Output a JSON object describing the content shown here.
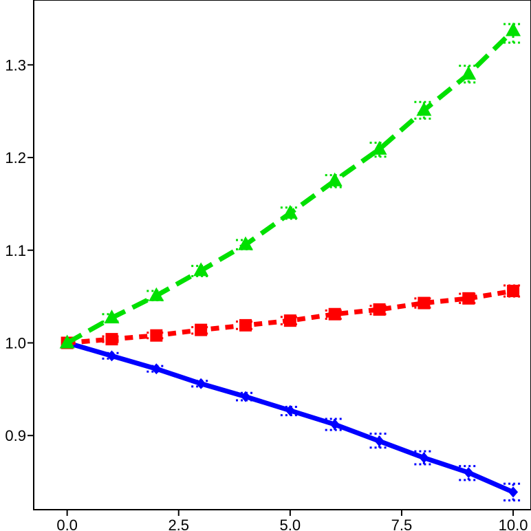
{
  "chart_data": {
    "type": "line",
    "title": "",
    "xlabel": "",
    "ylabel": "",
    "xlim": [
      -0.75,
      10.4
    ],
    "ylim": [
      0.82,
      1.37
    ],
    "x_ticks": [
      "0.0",
      "2.5",
      "5.0",
      "7.5",
      "10.0"
    ],
    "x_tick_values": [
      0,
      2.5,
      5,
      7.5,
      10
    ],
    "y_ticks": [
      "0.9",
      "1.0",
      "1.1",
      "1.2",
      "1.3"
    ],
    "y_tick_values": [
      0.9,
      1.0,
      1.1,
      1.2,
      1.3
    ],
    "grid": false,
    "legend": "none",
    "x": [
      0,
      1,
      2,
      3,
      4,
      5,
      6,
      7,
      8,
      9,
      10
    ],
    "series": [
      {
        "color": "#0000ff",
        "dash": "solid",
        "marker": "diamond",
        "values": [
          1.0,
          0.986,
          0.972,
          0.956,
          0.942,
          0.927,
          0.912,
          0.894,
          0.876,
          0.86,
          0.839
        ],
        "error_low": [
          1.0,
          0.983,
          0.969,
          0.953,
          0.938,
          0.922,
          0.906,
          0.887,
          0.869,
          0.852,
          0.83
        ],
        "error_high": [
          1.0,
          0.989,
          0.975,
          0.959,
          0.946,
          0.931,
          0.918,
          0.902,
          0.883,
          0.867,
          0.848
        ]
      },
      {
        "color": "#ff0000",
        "dash": "dashed",
        "marker": "square",
        "values": [
          1.0,
          1.004,
          1.008,
          1.014,
          1.019,
          1.024,
          1.031,
          1.036,
          1.043,
          1.048,
          1.056
        ],
        "error_low": [
          1.0,
          1.001,
          1.005,
          1.01,
          1.015,
          1.02,
          1.026,
          1.031,
          1.038,
          1.043,
          1.05
        ],
        "error_high": [
          1.0,
          1.007,
          1.011,
          1.017,
          1.023,
          1.028,
          1.035,
          1.04,
          1.048,
          1.053,
          1.062
        ]
      },
      {
        "color": "#00e000",
        "dash": "longdash",
        "marker": "triangle",
        "values": [
          1.0,
          1.027,
          1.051,
          1.078,
          1.106,
          1.14,
          1.175,
          1.209,
          1.251,
          1.29,
          1.337
        ],
        "error_low": [
          1.0,
          1.023,
          1.046,
          1.072,
          1.101,
          1.134,
          1.168,
          1.201,
          1.242,
          1.281,
          1.324
        ],
        "error_high": [
          1.0,
          1.031,
          1.056,
          1.083,
          1.111,
          1.146,
          1.181,
          1.216,
          1.26,
          1.299,
          1.344
        ]
      }
    ]
  }
}
